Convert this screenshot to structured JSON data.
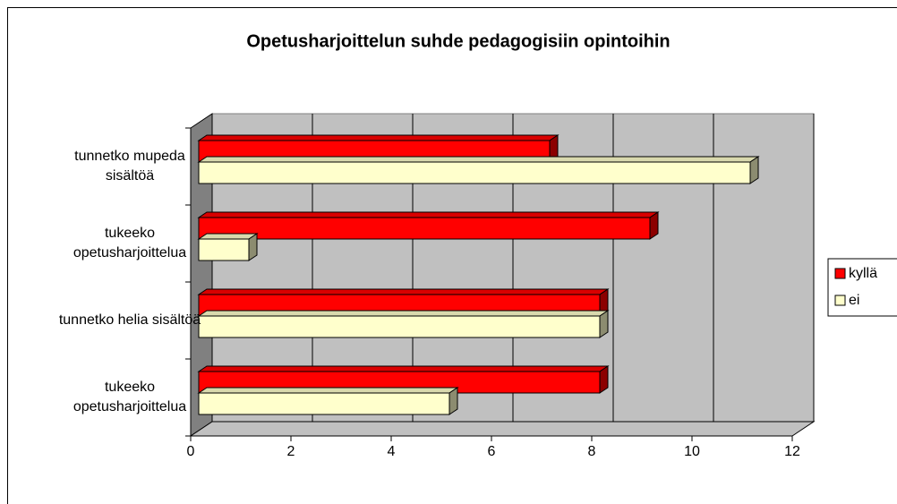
{
  "chart_data": {
    "type": "bar3d",
    "orientation": "horizontal",
    "title": "Opetusharjoittelun suhde pedagogisiin opintoihin",
    "categories": [
      "tunnetko mupeda sisältöä",
      "tukeeko opetusharjoittelua",
      "tunnetko helia sisältöä",
      "tukeeko opetusharjoittelua"
    ],
    "series": [
      {
        "name": "kyllä",
        "color": "#ff0000",
        "values": [
          7,
          9,
          8,
          8
        ]
      },
      {
        "name": "ei",
        "color": "#ffffcc",
        "values": [
          11,
          1,
          8,
          5
        ]
      }
    ],
    "xlim": [
      0,
      12
    ],
    "xticks": [
      0,
      2,
      4,
      6,
      8,
      10,
      12
    ],
    "grid": true,
    "legend": "right"
  }
}
